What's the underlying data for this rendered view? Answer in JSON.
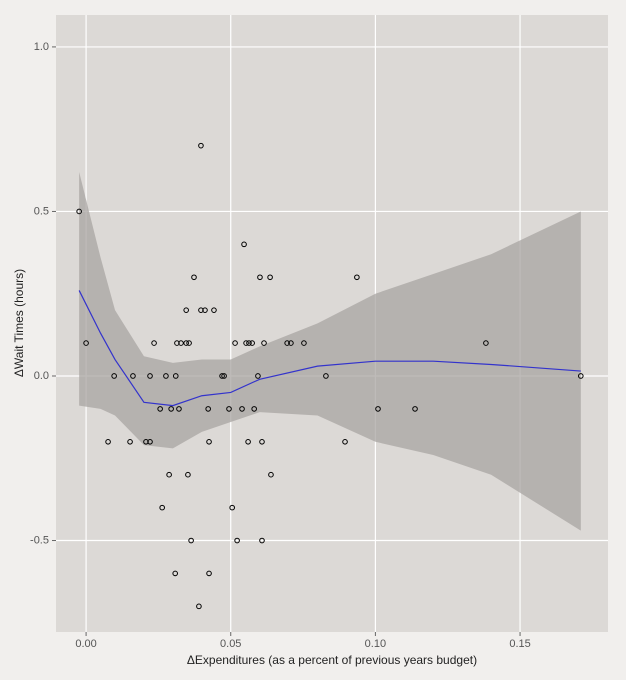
{
  "chart_data": {
    "type": "scatter",
    "x_label": "ΔExpenditures (as a percent of previous years budget)",
    "y_label": "ΔWait Times (hours)",
    "xlim": [
      -0.0104,
      0.1804
    ],
    "ylim": [
      -0.778,
      1.097
    ],
    "xticks": [
      {
        "value": 0,
        "label": "0.00"
      },
      {
        "value": 0.05,
        "label": "0.05"
      },
      {
        "value": 0.1,
        "label": "0.10"
      },
      {
        "value": 0.15,
        "label": "0.15"
      }
    ],
    "yticks": [
      -0.5,
      {
        "value": 0,
        "label": "0.0"
      },
      0.5,
      {
        "value": 1,
        "label": "1.0"
      }
    ],
    "grid": true,
    "color": "#000000",
    "x": [
      -0.0024,
      0.0,
      0.0097,
      0.0076,
      0.0152,
      0.0162,
      0.0207,
      0.0221,
      0.0221,
      0.0235,
      0.0256,
      0.0263,
      0.0276,
      0.0287,
      0.0294,
      0.0308,
      0.031,
      0.0314,
      0.0321,
      0.0328,
      0.0346,
      0.0346,
      0.0356,
      0.0352,
      0.0363,
      0.0373,
      0.039,
      0.0397,
      0.0397,
      0.0411,
      0.0422,
      0.0425,
      0.0425,
      0.0442,
      0.047,
      0.0477,
      0.0494,
      0.0505,
      0.0515,
      0.0522,
      0.0539,
      0.0546,
      0.0553,
      0.056,
      0.0563,
      0.0574,
      0.0581,
      0.0594,
      0.0601,
      0.0608,
      0.0608,
      0.0615,
      0.0636,
      0.0639,
      0.0695,
      0.0708,
      0.0753,
      0.0829,
      0.0895,
      0.0936,
      0.1009,
      0.1137,
      0.1382,
      0.171
    ],
    "values": [
      0.5,
      0.1,
      0.0,
      -0.2,
      -0.2,
      0.0,
      -0.2,
      -0.2,
      0.0,
      0.1,
      -0.1,
      -0.4,
      0.0,
      -0.3,
      -0.1,
      -0.6,
      0.0,
      0.1,
      -0.1,
      0.1,
      0.2,
      0.1,
      0.1,
      -0.3,
      -0.5,
      0.3,
      -0.7,
      0.7,
      0.2,
      0.2,
      -0.1,
      -0.2,
      -0.6,
      0.2,
      0.0,
      0.0,
      -0.1,
      -0.4,
      0.1,
      -0.5,
      -0.1,
      0.4,
      0.1,
      -0.2,
      0.1,
      0.1,
      -0.1,
      0.0,
      0.3,
      -0.5,
      -0.2,
      0.1,
      0.3,
      -0.3,
      0.1,
      0.1,
      0.1,
      0.0,
      -0.2,
      0.3,
      -0.1,
      -0.1,
      0.1,
      0.0
    ],
    "smooth": {
      "color": "#3333cc",
      "band_color": "#a8a4a1",
      "x": [
        -0.0024,
        0.005,
        0.01,
        0.02,
        0.03,
        0.04,
        0.05,
        0.06,
        0.08,
        0.1,
        0.12,
        0.14,
        0.171
      ],
      "values": [
        0.26,
        0.13,
        0.05,
        -0.08,
        -0.09,
        -0.06,
        -0.05,
        -0.01,
        0.03,
        0.045,
        0.045,
        0.035,
        0.015
      ],
      "upper": [
        0.62,
        0.36,
        0.2,
        0.06,
        0.04,
        0.05,
        0.05,
        0.09,
        0.16,
        0.25,
        0.31,
        0.37,
        0.5
      ],
      "lower": [
        -0.09,
        -0.1,
        -0.12,
        -0.21,
        -0.22,
        -0.17,
        -0.14,
        -0.11,
        -0.12,
        -0.2,
        -0.24,
        -0.3,
        -0.47
      ]
    }
  }
}
